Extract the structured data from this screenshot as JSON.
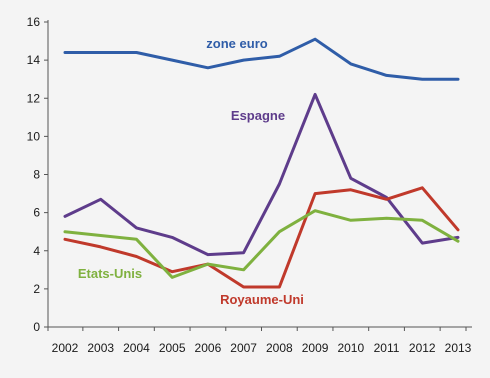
{
  "chart_data": {
    "type": "line",
    "x": [
      2002,
      2003,
      2004,
      2005,
      2006,
      2007,
      2008,
      2009,
      2010,
      2011,
      2012,
      2013
    ],
    "xlabel": "",
    "ylabel": "",
    "ylim": [
      0,
      16
    ],
    "yticks": [
      0,
      2,
      4,
      6,
      8,
      10,
      12,
      14,
      16
    ],
    "grid": false,
    "legend": "inline labels",
    "series": [
      {
        "name": "zone euro",
        "color": "#2F5DA8",
        "points": [
          [
            2002,
            14.4
          ],
          [
            2003,
            14.4
          ],
          [
            2004,
            14.4
          ],
          [
            2005,
            14.0
          ],
          [
            2006,
            13.6
          ],
          [
            2007,
            14.0
          ],
          [
            2008,
            14.2
          ],
          [
            2009,
            15.1
          ],
          [
            2010,
            13.8
          ],
          [
            2011,
            13.2
          ],
          [
            2012,
            13.0
          ],
          [
            2013,
            13.0
          ]
        ]
      },
      {
        "name": "Espagne",
        "color": "#5E3C8B",
        "points": [
          [
            2002,
            5.8
          ],
          [
            2003,
            6.7
          ],
          [
            2004,
            5.2
          ],
          [
            2005,
            4.7
          ],
          [
            2006,
            3.8
          ],
          [
            2007,
            3.9
          ],
          [
            2008,
            7.5
          ],
          [
            2009,
            12.2
          ],
          [
            2010,
            7.8
          ],
          [
            2011,
            6.8
          ],
          [
            2012,
            4.4
          ],
          [
            2013,
            4.7
          ]
        ]
      },
      {
        "name": "Royaume-Uni",
        "color": "#C0392B",
        "points": [
          [
            2002,
            4.6
          ],
          [
            2003,
            4.2
          ],
          [
            2004,
            3.7
          ],
          [
            2005,
            2.9
          ],
          [
            2006,
            3.3
          ],
          [
            2007,
            2.1
          ],
          [
            2008,
            2.1
          ],
          [
            2009,
            7.0
          ],
          [
            2010,
            7.2
          ],
          [
            2011,
            6.7
          ],
          [
            2012,
            7.3
          ],
          [
            2013,
            5.1
          ]
        ]
      },
      {
        "name": "Etats-Unis",
        "color": "#7FB13F",
        "points": [
          [
            2002,
            5.0
          ],
          [
            2003,
            4.8
          ],
          [
            2004,
            4.6
          ],
          [
            2005,
            2.6
          ],
          [
            2006,
            3.3
          ],
          [
            2007,
            3.0
          ],
          [
            2008,
            5.0
          ],
          [
            2009,
            6.1
          ],
          [
            2010,
            5.6
          ],
          [
            2011,
            5.7
          ],
          [
            2012,
            5.6
          ],
          [
            2013,
            4.5
          ]
        ]
      }
    ]
  }
}
